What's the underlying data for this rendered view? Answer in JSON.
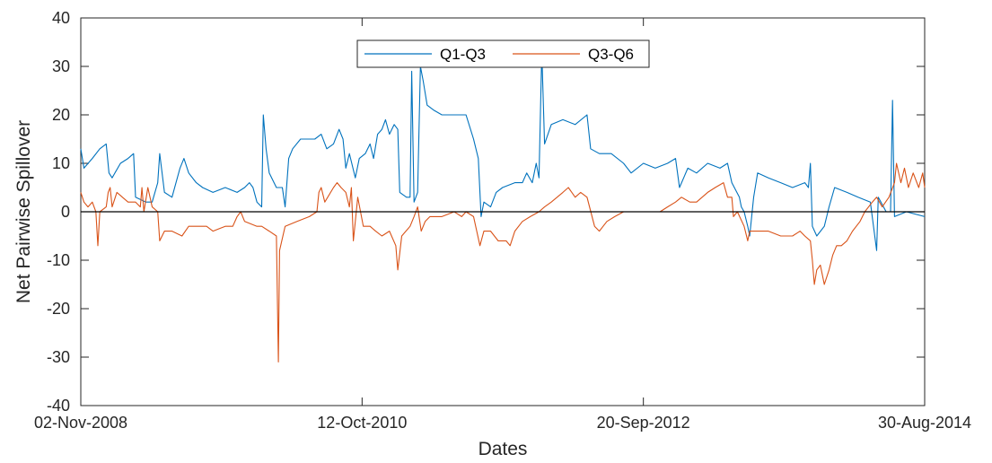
{
  "chart_data": {
    "type": "line",
    "title": "",
    "xlabel": "Dates",
    "ylabel": "Net Pairwise Spillover",
    "ylim": [
      -40,
      40
    ],
    "yticks": [
      -40,
      -30,
      -20,
      -10,
      0,
      10,
      20,
      30,
      40
    ],
    "xlim": [
      "2008-11-02",
      "2014-08-30"
    ],
    "xticks": [
      {
        "date": "2008-11-02",
        "label": "02-Nov-2008"
      },
      {
        "date": "2010-10-12",
        "label": "12-Oct-2010"
      },
      {
        "date": "2012-09-20",
        "label": "20-Sep-2012"
      },
      {
        "date": "2014-08-30",
        "label": "30-Aug-2014"
      }
    ],
    "grid": false,
    "legend_position": "top-center",
    "reference_line_y": 0,
    "series": [
      {
        "name": "Q1-Q3",
        "color": "#0072BD",
        "points": [
          [
            "2008-11-02",
            13
          ],
          [
            "2008-11-10",
            9
          ],
          [
            "2008-12-01",
            11
          ],
          [
            "2008-12-20",
            13
          ],
          [
            "2009-01-05",
            14
          ],
          [
            "2009-01-12",
            8
          ],
          [
            "2009-01-20",
            7
          ],
          [
            "2009-02-10",
            10
          ],
          [
            "2009-03-01",
            11
          ],
          [
            "2009-03-15",
            12
          ],
          [
            "2009-03-20",
            3
          ],
          [
            "2009-04-15",
            2
          ],
          [
            "2009-05-01",
            2
          ],
          [
            "2009-05-15",
            6
          ],
          [
            "2009-05-20",
            12
          ],
          [
            "2009-06-01",
            4
          ],
          [
            "2009-06-20",
            3
          ],
          [
            "2009-07-10",
            9
          ],
          [
            "2009-07-20",
            11
          ],
          [
            "2009-08-01",
            8
          ],
          [
            "2009-08-20",
            6
          ],
          [
            "2009-09-05",
            5
          ],
          [
            "2009-10-01",
            4
          ],
          [
            "2009-11-01",
            5
          ],
          [
            "2009-12-01",
            4
          ],
          [
            "2009-12-20",
            5
          ],
          [
            "2010-01-01",
            6
          ],
          [
            "2010-01-10",
            5
          ],
          [
            "2010-01-20",
            2
          ],
          [
            "2010-02-01",
            1
          ],
          [
            "2010-02-05",
            20
          ],
          [
            "2010-02-12",
            13
          ],
          [
            "2010-02-20",
            8
          ],
          [
            "2010-03-10",
            5
          ],
          [
            "2010-03-25",
            5
          ],
          [
            "2010-04-01",
            1
          ],
          [
            "2010-04-10",
            11
          ],
          [
            "2010-04-20",
            13
          ],
          [
            "2010-05-10",
            15
          ],
          [
            "2010-06-15",
            15
          ],
          [
            "2010-07-01",
            16
          ],
          [
            "2010-07-15",
            13
          ],
          [
            "2010-08-01",
            14
          ],
          [
            "2010-08-15",
            17
          ],
          [
            "2010-08-25",
            15
          ],
          [
            "2010-09-01",
            9
          ],
          [
            "2010-09-10",
            12
          ],
          [
            "2010-09-25",
            7
          ],
          [
            "2010-10-05",
            11
          ],
          [
            "2010-10-20",
            12
          ],
          [
            "2010-11-01",
            14
          ],
          [
            "2010-11-10",
            11
          ],
          [
            "2010-11-20",
            16
          ],
          [
            "2010-12-01",
            17
          ],
          [
            "2010-12-10",
            19
          ],
          [
            "2010-12-20",
            16
          ],
          [
            "2011-01-01",
            18
          ],
          [
            "2011-01-10",
            17
          ],
          [
            "2011-01-15",
            4
          ],
          [
            "2011-02-01",
            3
          ],
          [
            "2011-02-10",
            3
          ],
          [
            "2011-02-14",
            29
          ],
          [
            "2011-02-20",
            2
          ],
          [
            "2011-03-01",
            4
          ],
          [
            "2011-03-08",
            30
          ],
          [
            "2011-03-15",
            27
          ],
          [
            "2011-03-25",
            22
          ],
          [
            "2011-04-10",
            21
          ],
          [
            "2011-05-01",
            20
          ],
          [
            "2011-06-01",
            20
          ],
          [
            "2011-07-01",
            20
          ],
          [
            "2011-07-20",
            15
          ],
          [
            "2011-08-01",
            11
          ],
          [
            "2011-08-08",
            -1
          ],
          [
            "2011-08-15",
            2
          ],
          [
            "2011-09-01",
            1
          ],
          [
            "2011-09-15",
            4
          ],
          [
            "2011-10-01",
            5
          ],
          [
            "2011-11-01",
            6
          ],
          [
            "2011-11-20",
            6
          ],
          [
            "2011-12-01",
            8
          ],
          [
            "2011-12-15",
            6
          ],
          [
            "2011-12-25",
            10
          ],
          [
            "2012-01-01",
            7
          ],
          [
            "2012-01-08",
            33
          ],
          [
            "2012-01-15",
            14
          ],
          [
            "2012-02-01",
            18
          ],
          [
            "2012-03-01",
            19
          ],
          [
            "2012-04-01",
            18
          ],
          [
            "2012-05-01",
            20
          ],
          [
            "2012-05-10",
            13
          ],
          [
            "2012-06-01",
            12
          ],
          [
            "2012-07-01",
            12
          ],
          [
            "2012-08-01",
            10
          ],
          [
            "2012-08-20",
            8
          ],
          [
            "2012-09-20",
            10
          ],
          [
            "2012-10-20",
            9
          ],
          [
            "2012-11-20",
            10
          ],
          [
            "2012-12-10",
            11
          ],
          [
            "2012-12-20",
            5
          ],
          [
            "2013-01-10",
            9
          ],
          [
            "2013-02-01",
            8
          ],
          [
            "2013-03-01",
            10
          ],
          [
            "2013-04-01",
            9
          ],
          [
            "2013-04-20",
            10
          ],
          [
            "2013-05-01",
            6
          ],
          [
            "2013-05-20",
            3
          ],
          [
            "2013-05-25",
            1
          ],
          [
            "2013-06-01",
            0
          ],
          [
            "2013-06-10",
            -3
          ],
          [
            "2013-06-15",
            -5
          ],
          [
            "2013-06-25",
            3
          ],
          [
            "2013-07-05",
            8
          ],
          [
            "2013-08-01",
            7
          ],
          [
            "2013-09-01",
            6
          ],
          [
            "2013-10-01",
            5
          ],
          [
            "2013-11-01",
            6
          ],
          [
            "2013-11-10",
            5
          ],
          [
            "2013-11-15",
            10
          ],
          [
            "2013-11-20",
            -3
          ],
          [
            "2013-12-01",
            -5
          ],
          [
            "2013-12-20",
            -3
          ],
          [
            "2014-01-01",
            1
          ],
          [
            "2014-01-15",
            5
          ],
          [
            "2014-02-15",
            4
          ],
          [
            "2014-03-15",
            3
          ],
          [
            "2014-04-15",
            2
          ],
          [
            "2014-05-01",
            -8
          ],
          [
            "2014-05-05",
            3
          ],
          [
            "2014-05-25",
            0
          ],
          [
            "2014-06-05",
            0
          ],
          [
            "2014-06-10",
            23
          ],
          [
            "2014-06-15",
            -1
          ],
          [
            "2014-07-15",
            0
          ],
          [
            "2014-08-30",
            -1
          ]
        ]
      },
      {
        "name": "Q3-Q6",
        "color": "#D95319",
        "points": [
          [
            "2008-11-02",
            4
          ],
          [
            "2008-11-10",
            2
          ],
          [
            "2008-11-20",
            1
          ],
          [
            "2008-12-01",
            2
          ],
          [
            "2008-12-10",
            0
          ],
          [
            "2008-12-15",
            -7
          ],
          [
            "2008-12-20",
            0
          ],
          [
            "2009-01-05",
            1
          ],
          [
            "2009-01-10",
            4
          ],
          [
            "2009-01-15",
            5
          ],
          [
            "2009-01-20",
            1
          ],
          [
            "2009-02-01",
            4
          ],
          [
            "2009-03-01",
            2
          ],
          [
            "2009-03-20",
            2
          ],
          [
            "2009-04-01",
            1
          ],
          [
            "2009-04-05",
            5
          ],
          [
            "2009-04-10",
            0
          ],
          [
            "2009-04-20",
            5
          ],
          [
            "2009-05-01",
            1
          ],
          [
            "2009-05-15",
            0
          ],
          [
            "2009-05-20",
            -6
          ],
          [
            "2009-06-01",
            -4
          ],
          [
            "2009-06-20",
            -4
          ],
          [
            "2009-07-15",
            -5
          ],
          [
            "2009-08-01",
            -3
          ],
          [
            "2009-09-15",
            -3
          ],
          [
            "2009-10-01",
            -4
          ],
          [
            "2009-11-01",
            -3
          ],
          [
            "2009-11-20",
            -3
          ],
          [
            "2009-12-01",
            -1
          ],
          [
            "2009-12-10",
            0
          ],
          [
            "2009-12-20",
            -2
          ],
          [
            "2010-01-20",
            -3
          ],
          [
            "2010-02-01",
            -3
          ],
          [
            "2010-02-20",
            -4
          ],
          [
            "2010-03-10",
            -5
          ],
          [
            "2010-03-15",
            -31
          ],
          [
            "2010-03-18",
            -8
          ],
          [
            "2010-04-01",
            -3
          ],
          [
            "2010-05-01",
            -2
          ],
          [
            "2010-06-01",
            -1
          ],
          [
            "2010-06-20",
            0
          ],
          [
            "2010-06-25",
            4
          ],
          [
            "2010-07-01",
            5
          ],
          [
            "2010-07-10",
            2
          ],
          [
            "2010-08-01",
            5
          ],
          [
            "2010-08-10",
            6
          ],
          [
            "2010-08-20",
            5
          ],
          [
            "2010-09-01",
            4
          ],
          [
            "2010-09-10",
            1
          ],
          [
            "2010-09-15",
            5
          ],
          [
            "2010-09-20",
            -6
          ],
          [
            "2010-10-01",
            3
          ],
          [
            "2010-10-15",
            -3
          ],
          [
            "2010-11-01",
            -3
          ],
          [
            "2010-11-15",
            -4
          ],
          [
            "2010-12-01",
            -5
          ],
          [
            "2010-12-20",
            -4
          ],
          [
            "2011-01-05",
            -7
          ],
          [
            "2011-01-10",
            -12
          ],
          [
            "2011-01-20",
            -5
          ],
          [
            "2011-02-10",
            -3
          ],
          [
            "2011-02-20",
            -1
          ],
          [
            "2011-03-01",
            1
          ],
          [
            "2011-03-10",
            -4
          ],
          [
            "2011-03-20",
            -2
          ],
          [
            "2011-04-01",
            -1
          ],
          [
            "2011-05-01",
            -1
          ],
          [
            "2011-06-01",
            0
          ],
          [
            "2011-06-20",
            -1
          ],
          [
            "2011-07-01",
            0
          ],
          [
            "2011-07-20",
            -1
          ],
          [
            "2011-08-05",
            -7
          ],
          [
            "2011-08-15",
            -4
          ],
          [
            "2011-09-01",
            -4
          ],
          [
            "2011-09-20",
            -6
          ],
          [
            "2011-10-10",
            -6
          ],
          [
            "2011-10-20",
            -7
          ],
          [
            "2011-11-01",
            -4
          ],
          [
            "2011-11-20",
            -2
          ],
          [
            "2011-12-10",
            -1
          ],
          [
            "2012-01-01",
            0
          ],
          [
            "2012-01-15",
            1
          ],
          [
            "2012-02-01",
            2
          ],
          [
            "2012-03-01",
            4
          ],
          [
            "2012-03-15",
            5
          ],
          [
            "2012-04-01",
            3
          ],
          [
            "2012-04-15",
            4
          ],
          [
            "2012-05-01",
            3
          ],
          [
            "2012-05-20",
            -3
          ],
          [
            "2012-06-01",
            -4
          ],
          [
            "2012-06-20",
            -2
          ],
          [
            "2012-07-10",
            -1
          ],
          [
            "2012-08-01",
            0
          ],
          [
            "2012-09-01",
            0
          ],
          [
            "2012-10-01",
            0
          ],
          [
            "2012-11-01",
            0
          ],
          [
            "2012-11-20",
            1
          ],
          [
            "2012-12-10",
            2
          ],
          [
            "2012-12-25",
            3
          ],
          [
            "2013-01-15",
            2
          ],
          [
            "2013-02-01",
            2
          ],
          [
            "2013-03-01",
            4
          ],
          [
            "2013-03-20",
            5
          ],
          [
            "2013-04-10",
            6
          ],
          [
            "2013-04-20",
            3
          ],
          [
            "2013-05-01",
            3
          ],
          [
            "2013-05-05",
            -1
          ],
          [
            "2013-05-15",
            0
          ],
          [
            "2013-06-01",
            -3
          ],
          [
            "2013-06-10",
            -6
          ],
          [
            "2013-06-15",
            -4
          ],
          [
            "2013-07-01",
            -4
          ],
          [
            "2013-08-01",
            -4
          ],
          [
            "2013-09-01",
            -5
          ],
          [
            "2013-10-01",
            -5
          ],
          [
            "2013-10-20",
            -4
          ],
          [
            "2013-11-01",
            -5
          ],
          [
            "2013-11-15",
            -6
          ],
          [
            "2013-11-20",
            -10
          ],
          [
            "2013-11-25",
            -15
          ],
          [
            "2013-12-01",
            -12
          ],
          [
            "2013-12-10",
            -11
          ],
          [
            "2013-12-20",
            -15
          ],
          [
            "2014-01-01",
            -12
          ],
          [
            "2014-01-10",
            -9
          ],
          [
            "2014-01-20",
            -7
          ],
          [
            "2014-02-01",
            -7
          ],
          [
            "2014-02-15",
            -6
          ],
          [
            "2014-03-01",
            -4
          ],
          [
            "2014-03-20",
            -2
          ],
          [
            "2014-04-01",
            0
          ],
          [
            "2014-04-20",
            2
          ],
          [
            "2014-05-01",
            3
          ],
          [
            "2014-05-15",
            1
          ],
          [
            "2014-06-01",
            3
          ],
          [
            "2014-06-15",
            6
          ],
          [
            "2014-06-20",
            10
          ],
          [
            "2014-07-01",
            6
          ],
          [
            "2014-07-10",
            9
          ],
          [
            "2014-07-20",
            5
          ],
          [
            "2014-08-01",
            8
          ],
          [
            "2014-08-15",
            5
          ],
          [
            "2014-08-25",
            8
          ],
          [
            "2014-08-30",
            5
          ]
        ]
      }
    ]
  }
}
